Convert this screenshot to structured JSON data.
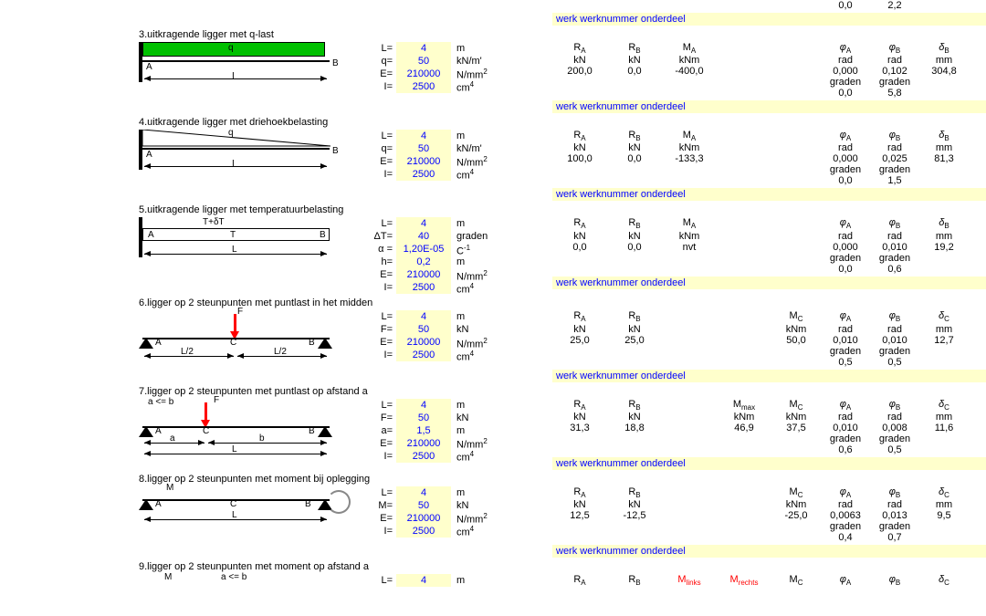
{
  "colors": {
    "highlight_bg": "#ffffcc",
    "input_text": "#0000ff",
    "accent_green": "#00c000",
    "accent_red": "#ff0000",
    "text": "#000000",
    "bg": "#ffffff"
  },
  "werk_label": "werk werknummer onderdeel",
  "tail_top": {
    "c8": "0,0",
    "c9": "2,2"
  },
  "sections": [
    {
      "id": 3,
      "title": "3.uitkragende ligger met q-last",
      "diagram": "cant_q_rect",
      "params": [
        {
          "label": "L=",
          "val": "4",
          "unit": "m"
        },
        {
          "label": "q=",
          "val": "50",
          "unit": "kN/m'"
        },
        {
          "label": "E=",
          "val": "210000",
          "unit": "N/mm<sup>2</sup>"
        },
        {
          "label": "I=",
          "val": "2500",
          "unit": "cm<sup>4</sup>"
        }
      ],
      "head": [
        "R<sub class='rsub'>A</sub>",
        "R<sub class='rsub'>B</sub>",
        "M<sub class='rsub'>A</sub>",
        "",
        "",
        "<span class='phi'></span><sub class='rsub'>A</sub>",
        "<span class='phi'></span><sub class='rsub'>B</sub>",
        "<span class='delta'></span><sub class='rsub'>B</sub>",
        ""
      ],
      "units": [
        "kN",
        "kN",
        "kNm",
        "",
        "",
        "rad",
        "rad",
        "mm",
        ""
      ],
      "vals": [
        "200,0",
        "0,0",
        "-400,0",
        "",
        "",
        "0,000",
        "0,102",
        "304,8",
        ""
      ],
      "extra": [
        [
          "",
          "",
          "",
          "",
          "",
          "graden",
          "graden",
          "",
          ""
        ],
        [
          "",
          "",
          "",
          "",
          "",
          "0,0",
          "5,8",
          "",
          ""
        ]
      ]
    },
    {
      "id": 4,
      "title": "4.uitkragende ligger met driehoekbelasting",
      "diagram": "cant_q_tri",
      "params": [
        {
          "label": "L=",
          "val": "4",
          "unit": "m"
        },
        {
          "label": "q=",
          "val": "50",
          "unit": "kN/m'"
        },
        {
          "label": "E=",
          "val": "210000",
          "unit": "N/mm<sup>2</sup>"
        },
        {
          "label": "I=",
          "val": "2500",
          "unit": "cm<sup>4</sup>"
        }
      ],
      "head": [
        "R<sub class='rsub'>A</sub>",
        "R<sub class='rsub'>B</sub>",
        "M<sub class='rsub'>A</sub>",
        "",
        "",
        "<span class='phi'></span><sub class='rsub'>A</sub>",
        "<span class='phi'></span><sub class='rsub'>B</sub>",
        "<span class='delta'></span><sub class='rsub'>B</sub>",
        ""
      ],
      "units": [
        "kN",
        "kN",
        "kNm",
        "",
        "",
        "rad",
        "rad",
        "mm",
        ""
      ],
      "vals": [
        "100,0",
        "0,0",
        "-133,3",
        "",
        "",
        "0,000",
        "0,025",
        "81,3",
        ""
      ],
      "extra": [
        [
          "",
          "",
          "",
          "",
          "",
          "graden",
          "graden",
          "",
          ""
        ],
        [
          "",
          "",
          "",
          "",
          "",
          "0,0",
          "1,5",
          "",
          ""
        ]
      ]
    },
    {
      "id": 5,
      "title": "5.uitkragende ligger met temperatuurbelasting",
      "diagram": "cant_temp",
      "params": [
        {
          "label": "L=",
          "val": "4",
          "unit": "m"
        },
        {
          "label": "ΔT=",
          "val": "40",
          "unit": "graden"
        },
        {
          "label": "α =",
          "val": "1,20E-05",
          "unit": "C<sup>-1</sup>"
        },
        {
          "label": "h=",
          "val": "0,2",
          "unit": "m"
        },
        {
          "label": "E=",
          "val": "210000",
          "unit": "N/mm<sup>2</sup>"
        },
        {
          "label": "I=",
          "val": "2500",
          "unit": "cm<sup>4</sup>"
        }
      ],
      "head": [
        "R<sub class='rsub'>A</sub>",
        "R<sub class='rsub'>B</sub>",
        "M<sub class='rsub'>A</sub>",
        "",
        "",
        "<span class='phi'></span><sub class='rsub'>A</sub>",
        "<span class='phi'></span><sub class='rsub'>B</sub>",
        "<span class='delta'></span><sub class='rsub'>B</sub>",
        ""
      ],
      "units": [
        "kN",
        "kN",
        "kNm",
        "",
        "",
        "rad",
        "rad",
        "mm",
        ""
      ],
      "vals": [
        "0,0",
        "0,0",
        "nvt",
        "",
        "",
        "0,000",
        "0,010",
        "19,2",
        ""
      ],
      "extra": [
        [
          "",
          "",
          "",
          "",
          "",
          "graden",
          "graden",
          "",
          ""
        ],
        [
          "",
          "",
          "",
          "",
          "",
          "0,0",
          "0,6",
          "",
          ""
        ]
      ]
    },
    {
      "id": 6,
      "title": "6.ligger op 2 steunpunten met puntlast in het midden",
      "diagram": "simple_F_center",
      "params": [
        {
          "label": "L=",
          "val": "4",
          "unit": "m"
        },
        {
          "label": "F=",
          "val": "50",
          "unit": "kN"
        },
        {
          "label": "E=",
          "val": "210000",
          "unit": "N/mm<sup>2</sup>"
        },
        {
          "label": "I=",
          "val": "2500",
          "unit": "cm<sup>4</sup>"
        }
      ],
      "head": [
        "R<sub class='rsub'>A</sub>",
        "R<sub class='rsub'>B</sub>",
        "",
        "",
        "M<sub class='rsub'>C</sub>",
        "<span class='phi'></span><sub class='rsub'>A</sub>",
        "<span class='phi'></span><sub class='rsub'>B</sub>",
        "<span class='delta'></span><sub class='rsub'>C</sub>",
        ""
      ],
      "units": [
        "kN",
        "kN",
        "",
        "",
        "kNm",
        "rad",
        "rad",
        "mm",
        ""
      ],
      "vals": [
        "25,0",
        "25,0",
        "",
        "",
        "50,0",
        "0,010",
        "0,010",
        "12,7",
        ""
      ],
      "extra": [
        [
          "",
          "",
          "",
          "",
          "",
          "graden",
          "graden",
          "",
          ""
        ],
        [
          "",
          "",
          "",
          "",
          "",
          "0,5",
          "0,5",
          "",
          ""
        ]
      ]
    },
    {
      "id": 7,
      "title": "7.ligger op 2 steunpunten met puntlast op afstand a",
      "subtitle": "a <= b",
      "diagram": "simple_F_offset",
      "params": [
        {
          "label": "L=",
          "val": "4",
          "unit": "m"
        },
        {
          "label": "F=",
          "val": "50",
          "unit": "kN"
        },
        {
          "label": "a=",
          "val": "1,5",
          "unit": "m"
        },
        {
          "label": "E=",
          "val": "210000",
          "unit": "N/mm<sup>2</sup>"
        },
        {
          "label": "I=",
          "val": "2500",
          "unit": "cm<sup>4</sup>"
        }
      ],
      "head": [
        "R<sub class='rsub'>A</sub>",
        "R<sub class='rsub'>B</sub>",
        "",
        "M<sub class='rsub'>max</sub>",
        "M<sub class='rsub'>C</sub>",
        "<span class='phi'></span><sub class='rsub'>A</sub>",
        "<span class='phi'></span><sub class='rsub'>B</sub>",
        "<span class='delta'></span><sub class='rsub'>C</sub>",
        ""
      ],
      "units": [
        "kN",
        "kN",
        "",
        "kNm",
        "kNm",
        "rad",
        "rad",
        "mm",
        ""
      ],
      "vals": [
        "31,3",
        "18,8",
        "",
        "46,9",
        "37,5",
        "0,010",
        "0,008",
        "11,6",
        ""
      ],
      "extra": [
        [
          "",
          "",
          "",
          "",
          "",
          "graden",
          "graden",
          "",
          ""
        ],
        [
          "",
          "",
          "",
          "",
          "",
          "0,6",
          "0,5",
          "",
          ""
        ]
      ]
    },
    {
      "id": 8,
      "title": "8.ligger op 2 steunpunten met moment bij oplegging",
      "diagram": "simple_M_support",
      "params": [
        {
          "label": "L=",
          "val": "4",
          "unit": "m"
        },
        {
          "label": "M=",
          "val": "50",
          "unit": "kN"
        },
        {
          "label": "E=",
          "val": "210000",
          "unit": "N/mm<sup>2</sup>"
        },
        {
          "label": "I=",
          "val": "2500",
          "unit": "cm<sup>4</sup>"
        }
      ],
      "head": [
        "R<sub class='rsub'>A</sub>",
        "R<sub class='rsub'>B</sub>",
        "",
        "",
        "M<sub class='rsub'>C</sub>",
        "<span class='phi'></span><sub class='rsub'>A</sub>",
        "<span class='phi'></span><sub class='rsub'>B</sub>",
        "<span class='delta'></span><sub class='rsub'>C</sub>",
        ""
      ],
      "units": [
        "kN",
        "kN",
        "",
        "",
        "kNm",
        "rad",
        "rad",
        "mm",
        ""
      ],
      "vals": [
        "12,5",
        "-12,5",
        "",
        "",
        "-25,0",
        "0,0063",
        "0,013",
        "9,5",
        ""
      ],
      "extra": [
        [
          "",
          "",
          "",
          "",
          "",
          "graden",
          "graden",
          "",
          ""
        ],
        [
          "",
          "",
          "",
          "",
          "",
          "0,4",
          "0,7",
          "",
          ""
        ]
      ]
    },
    {
      "id": 9,
      "title": "9.ligger op 2 steunpunten met moment op afstand a",
      "subtitle": "a <= b",
      "diagram": "simple_M_offset",
      "params": [
        {
          "label": "L=",
          "val": "4",
          "unit": "m"
        }
      ],
      "head": [
        "R<sub class='rsub'>A</sub>",
        "R<sub class='rsub'>B</sub>",
        "<span class='red'>M<sub class='rsub'>links</sub></span>",
        "<span class='red'>M<sub class='rsub'>rechts</sub></span>",
        "M<sub class='rsub'>C</sub>",
        "<span class='phi'></span><sub class='rsub'>A</sub>",
        "<span class='phi'></span><sub class='rsub'>B</sub>",
        "<span class='delta'></span><sub class='rsub'>C</sub>",
        ""
      ],
      "units": [],
      "vals": [],
      "extra": [],
      "no_werk": true
    }
  ],
  "diagram_labels": {
    "A": "A",
    "B": "B",
    "C": "C",
    "q": "q",
    "F": "F",
    "M": "M",
    "L": "L",
    "Lhalf": "L/2",
    "a": "a",
    "b": "b",
    "T": "T",
    "TdT": "T+δT"
  }
}
